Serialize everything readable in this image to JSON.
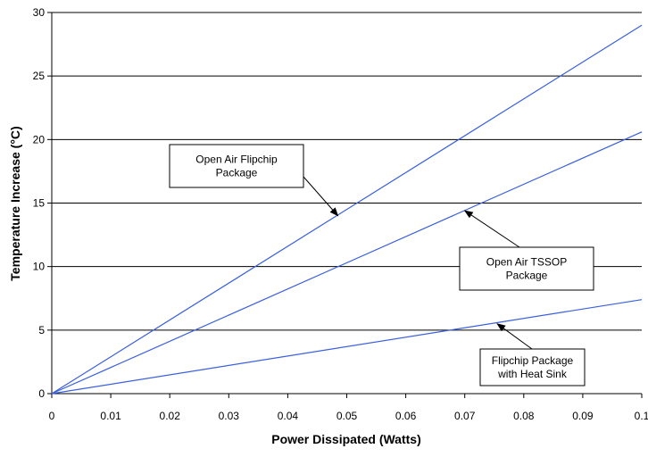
{
  "chart_data": {
    "type": "line",
    "xlabel": "Power Dissipated (Watts)",
    "ylabel": "Temperature Increase (°C)",
    "xlim": [
      0,
      0.1
    ],
    "ylim": [
      0,
      30
    ],
    "x_ticks": [
      "0",
      "0.01",
      "0.02",
      "0.03",
      "0.04",
      "0.05",
      "0.06",
      "0.07",
      "0.08",
      "0.09",
      "0.1"
    ],
    "y_ticks": [
      "0",
      "5",
      "10",
      "15",
      "20",
      "25",
      "30"
    ],
    "grid": "horizontal",
    "line_color": "#3a5fe0",
    "series": [
      {
        "x": [
          0,
          0.1
        ],
        "y": [
          0,
          29.0
        ]
      },
      {
        "x": [
          0,
          0.1
        ],
        "y": [
          0,
          20.6
        ]
      },
      {
        "x": [
          0,
          0.1
        ],
        "y": [
          0,
          7.4
        ]
      }
    ],
    "annotations": [
      {
        "lines": [
          "Open Air Flipchip",
          "Package"
        ],
        "series": 0,
        "target": [
          0.0485,
          14.0
        ]
      },
      {
        "lines": [
          "Open Air TSSOP",
          "Package"
        ],
        "series": 1,
        "target": [
          0.07,
          14.4
        ]
      },
      {
        "lines": [
          "Flipchip Package",
          "with Heat Sink"
        ],
        "series": 2,
        "target": [
          0.0755,
          5.5
        ]
      }
    ]
  }
}
